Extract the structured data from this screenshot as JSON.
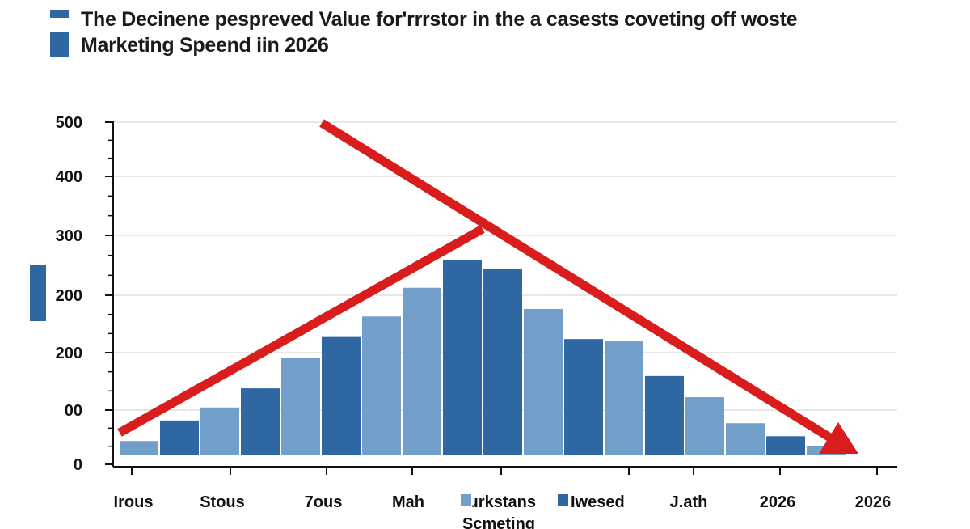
{
  "chart_data": {
    "type": "bar",
    "title": "The Decinene pespreved Value for'rrrstor in the a casests coveting off woste",
    "subtitle": "Marketing Speend iin 2026",
    "ytick_labels": [
      "0",
      "00",
      "200",
      "200",
      "300",
      "400",
      "500"
    ],
    "ylim": [
      0,
      500
    ],
    "xtick_labels": [
      "Irous",
      "Stous",
      "7ous",
      "Mah",
      "J.ath",
      "2026",
      "2026"
    ],
    "xlabel": "Scmeting",
    "grid": true,
    "legend": [
      {
        "name": "ɹrkstans",
        "color": "#729fca"
      },
      {
        "name": "Iwesed",
        "color": "#2f67a3"
      }
    ],
    "values": [
      34,
      64,
      83,
      111,
      155,
      186,
      216,
      258,
      299,
      285,
      227,
      183,
      180,
      129,
      98,
      60,
      41,
      26
    ],
    "bar_colors": [
      "light",
      "dark",
      "light",
      "dark",
      "light",
      "dark",
      "light",
      "light",
      "dark",
      "dark",
      "light",
      "dark",
      "light",
      "dark",
      "light",
      "light",
      "dark",
      "light"
    ],
    "colors": {
      "light": "#729fca",
      "dark": "#2f67a3",
      "trend": "#d91c1c"
    },
    "annotations": [
      "rising trend line",
      "falling trend arrow"
    ]
  }
}
